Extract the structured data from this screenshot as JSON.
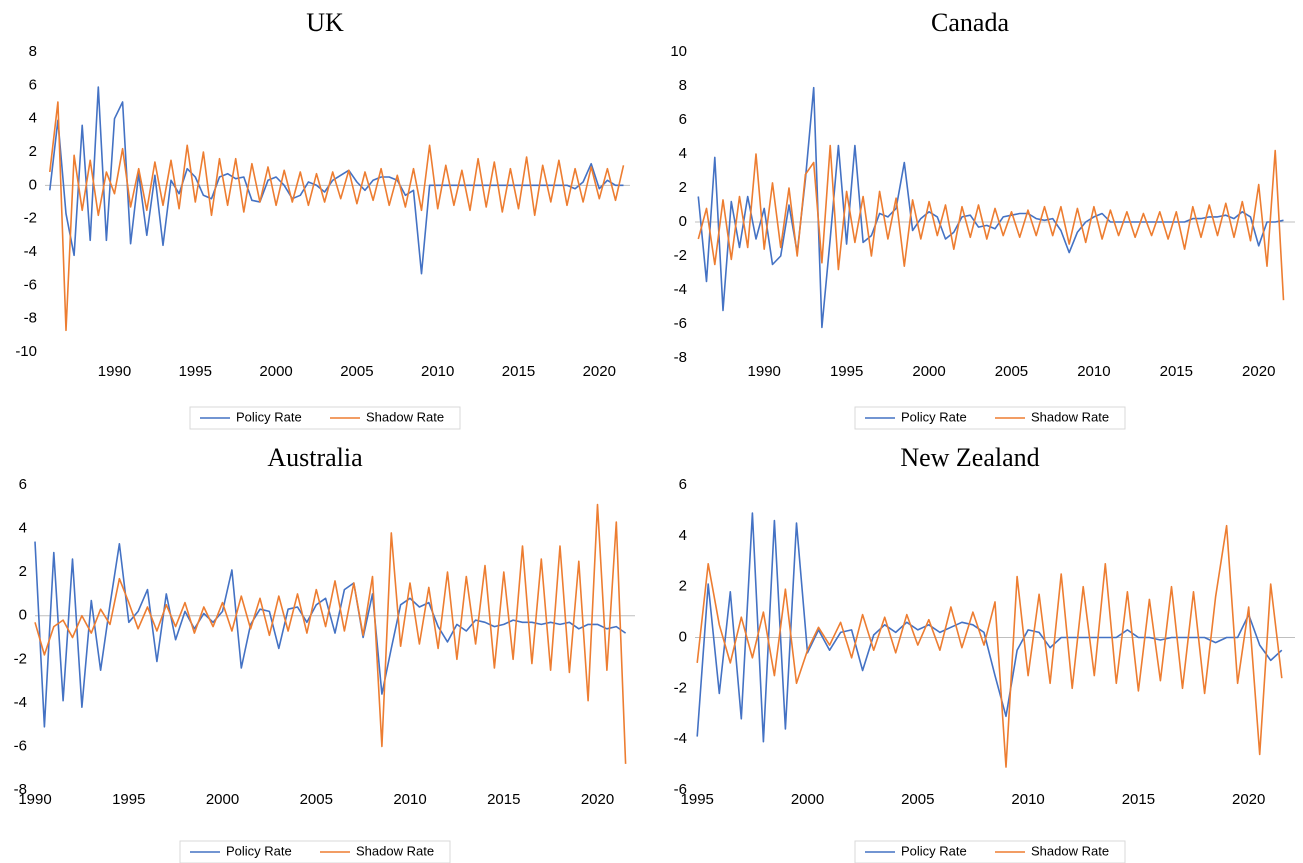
{
  "chart_data": [
    {
      "type": "line",
      "title": "UK",
      "x": [
        1986,
        1986.5,
        1987,
        1987.5,
        1988,
        1988.5,
        1989,
        1989.5,
        1990,
        1990.5,
        1991,
        1991.5,
        1992,
        1992.5,
        1993,
        1993.5,
        1994,
        1994.5,
        1995,
        1995.5,
        1996,
        1996.5,
        1997,
        1997.5,
        1998,
        1998.5,
        1999,
        1999.5,
        2000,
        2000.5,
        2001,
        2001.5,
        2002,
        2002.5,
        2003,
        2003.5,
        2004,
        2004.5,
        2005,
        2005.5,
        2006,
        2006.5,
        2007,
        2007.5,
        2008,
        2008.5,
        2009,
        2009.5,
        2010,
        2010.5,
        2011,
        2011.5,
        2012,
        2012.5,
        2013,
        2013.5,
        2014,
        2014.5,
        2015,
        2015.5,
        2016,
        2016.5,
        2017,
        2017.5,
        2018,
        2018.5,
        2019,
        2019.5,
        2020,
        2020.5,
        2021,
        2021.5
      ],
      "xlim": [
        1985.7,
        2021.9
      ],
      "xticks": [
        1990,
        1995,
        2000,
        2005,
        2010,
        2015,
        2020
      ],
      "ylim": [
        -10,
        8
      ],
      "yticks": [
        -10,
        -8,
        -6,
        -4,
        -2,
        0,
        2,
        4,
        6,
        8
      ],
      "series": [
        {
          "name": "Policy Rate",
          "color": "#4472c4",
          "values": [
            -0.3,
            3.9,
            -1.7,
            -4.2,
            3.6,
            -3.3,
            5.9,
            -3.3,
            4.0,
            5.0,
            -3.5,
            0.7,
            -3.0,
            0.6,
            -3.6,
            0.3,
            -0.5,
            1.0,
            0.5,
            -0.6,
            -0.8,
            0.5,
            0.7,
            0.4,
            0.5,
            -0.9,
            -1.0,
            0.3,
            0.5,
            0,
            -0.8,
            -0.6,
            0.2,
            0,
            -0.4,
            0.3,
            0.6,
            0.9,
            0.2,
            -0.3,
            0.3,
            0.5,
            0.5,
            0.3,
            -0.6,
            -0.3,
            -5.3,
            0,
            0,
            0,
            0,
            0,
            0,
            0,
            0,
            0,
            0,
            0,
            0,
            0,
            0,
            0,
            0,
            0,
            0,
            -0.2,
            0.2,
            1.3,
            -0.2,
            0.3,
            0,
            0
          ]
        },
        {
          "name": "Shadow Rate",
          "color": "#ed7d31",
          "values": [
            0.8,
            5.0,
            -8.7,
            1.8,
            -1.5,
            1.5,
            -1.8,
            0.8,
            -0.5,
            2.2,
            -1.3,
            1.0,
            -1.5,
            1.4,
            -1.2,
            1.5,
            -1.4,
            2.4,
            -1.0,
            2.0,
            -1.8,
            1.6,
            -1.2,
            1.6,
            -1.6,
            1.3,
            -1.0,
            1.1,
            -1.2,
            0.9,
            -1.0,
            0.8,
            -1.2,
            0.7,
            -1.0,
            0.8,
            -0.8,
            0.9,
            -1.1,
            0.8,
            -0.9,
            1.0,
            -1.2,
            0.6,
            -1.3,
            1.0,
            -1.5,
            2.4,
            -1.4,
            1.2,
            -1.2,
            0.9,
            -1.5,
            1.6,
            -1.3,
            1.4,
            -1.6,
            1.0,
            -1.4,
            1.7,
            -1.8,
            1.2,
            -1.0,
            1.5,
            -1.2,
            1.0,
            -1.0,
            1.1,
            -0.8,
            1.0,
            -0.9,
            1.2
          ]
        }
      ]
    },
    {
      "type": "line",
      "title": "Canada",
      "x": [
        1986,
        1986.5,
        1987,
        1987.5,
        1988,
        1988.5,
        1989,
        1989.5,
        1990,
        1990.5,
        1991,
        1991.5,
        1992,
        1992.5,
        1993,
        1993.5,
        1994,
        1994.5,
        1995,
        1995.5,
        1996,
        1996.5,
        1997,
        1997.5,
        1998,
        1998.5,
        1999,
        1999.5,
        2000,
        2000.5,
        2001,
        2001.5,
        2002,
        2002.5,
        2003,
        2003.5,
        2004,
        2004.5,
        2005,
        2005.5,
        2006,
        2006.5,
        2007,
        2007.5,
        2008,
        2008.5,
        2009,
        2009.5,
        2010,
        2010.5,
        2011,
        2011.5,
        2012,
        2012.5,
        2013,
        2013.5,
        2014,
        2014.5,
        2015,
        2015.5,
        2016,
        2016.5,
        2017,
        2017.5,
        2018,
        2018.5,
        2019,
        2019.5,
        2020,
        2020.5,
        2021,
        2021.5
      ],
      "xlim": [
        1985.8,
        2022.2
      ],
      "xticks": [
        1990,
        1995,
        2000,
        2005,
        2010,
        2015,
        2020
      ],
      "ylim": [
        -8,
        10
      ],
      "yticks": [
        -8,
        -6,
        -4,
        -2,
        0,
        2,
        4,
        6,
        8,
        10
      ],
      "series": [
        {
          "name": "Policy Rate",
          "color": "#4472c4",
          "values": [
            1.5,
            -3.5,
            3.8,
            -5.2,
            1.2,
            -1.5,
            1.5,
            -1.0,
            0.8,
            -2.5,
            -2.0,
            1.0,
            -1.8,
            2.5,
            7.9,
            -6.2,
            -1.0,
            4.5,
            -1.3,
            4.5,
            -1.2,
            -0.8,
            0.5,
            0.3,
            0.8,
            3.5,
            -0.5,
            0.2,
            0.6,
            0.3,
            -1.0,
            -0.6,
            0.3,
            0.4,
            -0.3,
            -0.2,
            -0.4,
            0.3,
            0.4,
            0.5,
            0.5,
            0.2,
            0.1,
            0.2,
            -0.5,
            -1.8,
            -0.6,
            0,
            0.3,
            0.5,
            0,
            0,
            0,
            0,
            0,
            0,
            0,
            0,
            0,
            0,
            0.2,
            0.2,
            0.3,
            0.3,
            0.4,
            0.2,
            0.6,
            0.3,
            -1.4,
            0,
            0,
            0.1
          ]
        },
        {
          "name": "Shadow Rate",
          "color": "#ed7d31",
          "values": [
            -1.0,
            0.8,
            -2.5,
            1.3,
            -2.2,
            1.5,
            -1.5,
            4.0,
            -1.6,
            2.3,
            -1.5,
            2.0,
            -2.0,
            2.8,
            3.5,
            -2.4,
            4.5,
            -2.8,
            1.8,
            -1.2,
            1.5,
            -2.0,
            1.8,
            -1.0,
            1.4,
            -2.6,
            1.3,
            -1.0,
            1.2,
            -0.8,
            1.0,
            -1.6,
            0.9,
            -0.9,
            1.0,
            -1.0,
            0.8,
            -0.8,
            0.6,
            -0.9,
            0.7,
            -0.8,
            0.9,
            -0.8,
            0.9,
            -1.3,
            0.8,
            -1.2,
            0.9,
            -1.0,
            0.7,
            -0.8,
            0.6,
            -0.9,
            0.5,
            -0.8,
            0.6,
            -1.0,
            0.6,
            -1.6,
            0.9,
            -0.9,
            1.0,
            -0.8,
            1.1,
            -0.9,
            1.2,
            -1.1,
            2.2,
            -2.6,
            4.2,
            -4.6
          ]
        }
      ]
    },
    {
      "type": "line",
      "title": "Australia",
      "x": [
        1990,
        1990.5,
        1991,
        1991.5,
        1992,
        1992.5,
        1993,
        1993.5,
        1994,
        1994.5,
        1995,
        1995.5,
        1996,
        1996.5,
        1997,
        1997.5,
        1998,
        1998.5,
        1999,
        1999.5,
        2000,
        2000.5,
        2001,
        2001.5,
        2002,
        2002.5,
        2003,
        2003.5,
        2004,
        2004.5,
        2005,
        2005.5,
        2006,
        2006.5,
        2007,
        2007.5,
        2008,
        2008.5,
        2009,
        2009.5,
        2010,
        2010.5,
        2011,
        2011.5,
        2012,
        2012.5,
        2013,
        2013.5,
        2014,
        2014.5,
        2015,
        2015.5,
        2016,
        2016.5,
        2017,
        2017.5,
        2018,
        2018.5,
        2019,
        2019.5,
        2020,
        2020.5,
        2021,
        2021.5
      ],
      "xlim": [
        1990,
        2022
      ],
      "xticks": [
        1990,
        1995,
        2000,
        2005,
        2010,
        2015,
        2020
      ],
      "ylim": [
        -8,
        6
      ],
      "yticks": [
        -8,
        -6,
        -4,
        -2,
        0,
        2,
        4,
        6
      ],
      "series": [
        {
          "name": "Policy Rate",
          "color": "#4472c4",
          "values": [
            3.4,
            -5.1,
            2.9,
            -3.9,
            2.6,
            -4.2,
            0.7,
            -2.5,
            0.5,
            3.3,
            -0.3,
            0.2,
            1.2,
            -2.1,
            1.0,
            -1.1,
            0.2,
            -0.6,
            0.1,
            -0.3,
            0.2,
            2.1,
            -2.4,
            -0.4,
            0.3,
            0.2,
            -1.5,
            0.3,
            0.4,
            -0.3,
            0.5,
            0.8,
            -0.8,
            1.2,
            1.5,
            -1.0,
            1.0,
            -3.6,
            -1.5,
            0.5,
            0.8,
            0.4,
            0.6,
            -0.5,
            -1.2,
            -0.4,
            -0.7,
            -0.2,
            -0.3,
            -0.5,
            -0.4,
            -0.2,
            -0.3,
            -0.3,
            -0.4,
            -0.3,
            -0.4,
            -0.3,
            -0.6,
            -0.4,
            -0.4,
            -0.6,
            -0.5,
            -0.8
          ]
        },
        {
          "name": "Shadow Rate",
          "color": "#ed7d31",
          "values": [
            -0.3,
            -1.8,
            -0.5,
            -0.2,
            -1.0,
            0,
            -0.8,
            0.3,
            -0.4,
            1.7,
            0.6,
            -0.6,
            0.4,
            -0.7,
            0.5,
            -0.5,
            0.6,
            -0.8,
            0.4,
            -0.5,
            0.6,
            -0.7,
            0.9,
            -0.6,
            0.8,
            -0.9,
            0.9,
            -0.7,
            1.0,
            -0.8,
            1.2,
            -0.5,
            1.6,
            -0.7,
            1.5,
            -0.9,
            1.8,
            -6.0,
            3.8,
            -1.4,
            1.5,
            -1.3,
            1.3,
            -1.5,
            2.0,
            -2.0,
            1.8,
            -1.3,
            2.3,
            -2.4,
            2.0,
            -2.0,
            3.2,
            -2.2,
            2.6,
            -2.5,
            3.2,
            -2.6,
            2.5,
            -3.9,
            5.1,
            -2.5,
            4.3,
            -6.8
          ]
        }
      ]
    },
    {
      "type": "line",
      "title": "New Zealand",
      "x": [
        1995,
        1995.5,
        1996,
        1996.5,
        1997,
        1997.5,
        1998,
        1998.5,
        1999,
        1999.5,
        2000,
        2000.5,
        2001,
        2001.5,
        2002,
        2002.5,
        2003,
        2003.5,
        2004,
        2004.5,
        2005,
        2005.5,
        2006,
        2006.5,
        2007,
        2007.5,
        2008,
        2008.5,
        2009,
        2009.5,
        2010,
        2010.5,
        2011,
        2011.5,
        2012,
        2012.5,
        2013,
        2013.5,
        2014,
        2014.5,
        2015,
        2015.5,
        2016,
        2016.5,
        2017,
        2017.5,
        2018,
        2018.5,
        2019,
        2019.5,
        2020,
        2020.5,
        2021,
        2021.5
      ],
      "xlim": [
        1994.9,
        2022.1
      ],
      "xticks": [
        1995,
        2000,
        2005,
        2010,
        2015,
        2020
      ],
      "ylim": [
        -6,
        6
      ],
      "yticks": [
        -6,
        -4,
        -2,
        0,
        2,
        4,
        6
      ],
      "series": [
        {
          "name": "Policy Rate",
          "color": "#4472c4",
          "values": [
            -3.9,
            2.1,
            -2.2,
            1.8,
            -3.2,
            4.9,
            -4.1,
            4.6,
            -3.6,
            4.5,
            -0.6,
            0.3,
            -0.5,
            0.2,
            0.3,
            -1.3,
            0.1,
            0.5,
            0.2,
            0.6,
            0.3,
            0.5,
            0.2,
            0.4,
            0.6,
            0.5,
            0.2,
            -1.5,
            -3.1,
            -0.5,
            0.3,
            0.2,
            -0.4,
            0,
            0,
            0,
            0,
            0,
            0,
            0.3,
            0,
            0,
            -0.1,
            0,
            0,
            0,
            0,
            -0.2,
            0,
            0,
            0.9,
            -0.3,
            -0.9,
            -0.5
          ]
        },
        {
          "name": "Shadow Rate",
          "color": "#ed7d31",
          "values": [
            -1.0,
            2.9,
            0.5,
            -1.0,
            0.8,
            -0.8,
            1.0,
            -1.5,
            1.9,
            -1.8,
            -0.5,
            0.4,
            -0.3,
            0.6,
            -0.8,
            0.9,
            -0.5,
            0.8,
            -0.6,
            0.9,
            -0.3,
            0.7,
            -0.5,
            1.2,
            -0.4,
            1.0,
            -0.3,
            1.4,
            -5.1,
            2.4,
            -1.5,
            1.7,
            -1.8,
            2.5,
            -2.0,
            2.0,
            -1.5,
            2.9,
            -1.8,
            1.8,
            -2.1,
            1.5,
            -1.7,
            2.0,
            -2.0,
            1.8,
            -2.2,
            1.6,
            4.4,
            -1.8,
            1.2,
            -4.6,
            2.1,
            -1.6
          ]
        }
      ]
    }
  ]
}
